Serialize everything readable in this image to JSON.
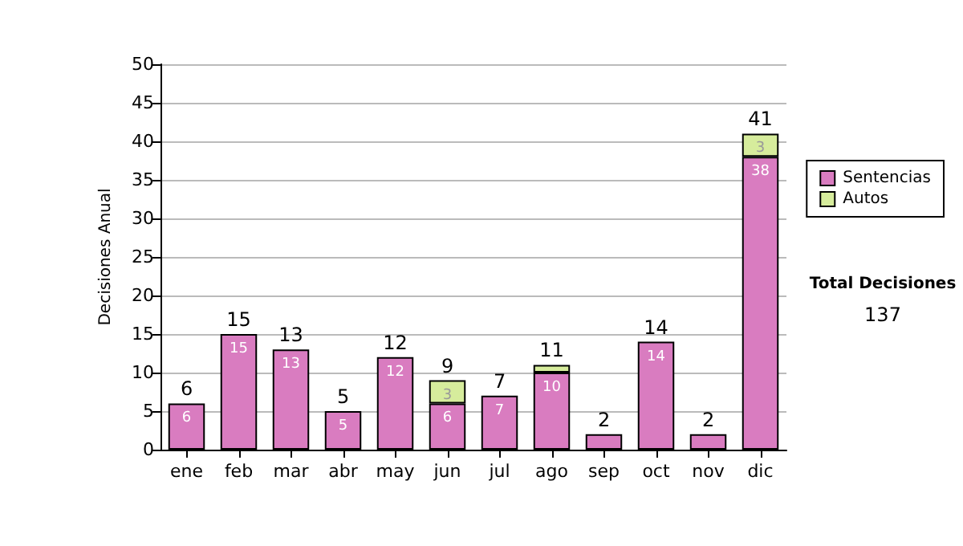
{
  "chart_data": {
    "type": "bar",
    "stacked": true,
    "ylabel": "Decisiones Anual",
    "categories": [
      "ene",
      "feb",
      "mar",
      "abr",
      "may",
      "jun",
      "jul",
      "ago",
      "sep",
      "oct",
      "nov",
      "dic"
    ],
    "series": [
      {
        "name": "Sentencias",
        "color": "#d97cc0",
        "values": [
          6,
          15,
          13,
          5,
          12,
          6,
          7,
          10,
          2,
          14,
          2,
          38
        ],
        "value_labels": [
          "6",
          "15",
          "13",
          "5",
          "12",
          "6",
          "7",
          "10",
          null,
          "14",
          null,
          "38"
        ]
      },
      {
        "name": "Autos",
        "color": "#d6ec9c",
        "values": [
          null,
          null,
          null,
          null,
          null,
          3,
          null,
          1,
          null,
          null,
          null,
          3
        ],
        "value_labels": [
          null,
          null,
          null,
          null,
          null,
          "3",
          null,
          null,
          null,
          null,
          null,
          "3"
        ]
      }
    ],
    "totals": [
      "6",
      "15",
      "13",
      "5",
      "12",
      "9",
      "7",
      "11",
      "2",
      "14",
      "2",
      "41"
    ],
    "ylim": [
      0,
      50
    ],
    "yticks": [
      0,
      5,
      10,
      15,
      20,
      25,
      30,
      35,
      40,
      45,
      50
    ],
    "grid": "y",
    "legend": "right",
    "annotations": [
      "Total Decisiones",
      "137"
    ]
  }
}
